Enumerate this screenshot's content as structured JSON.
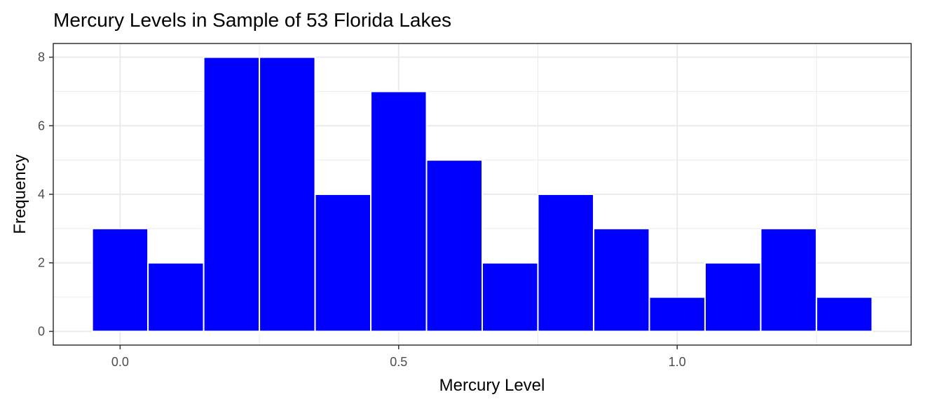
{
  "chart_data": {
    "type": "bar",
    "title": "Mercury Levels in Sample of 53 Florida Lakes",
    "xlabel": "Mercury Level",
    "ylabel": "Frequency",
    "bin_width": 0.1,
    "bins": [
      {
        "x_start": -0.05,
        "x_end": 0.05,
        "count": 3
      },
      {
        "x_start": 0.05,
        "x_end": 0.15,
        "count": 2
      },
      {
        "x_start": 0.15,
        "x_end": 0.25,
        "count": 8
      },
      {
        "x_start": 0.25,
        "x_end": 0.35,
        "count": 8
      },
      {
        "x_start": 0.35,
        "x_end": 0.45,
        "count": 4
      },
      {
        "x_start": 0.45,
        "x_end": 0.55,
        "count": 7
      },
      {
        "x_start": 0.55,
        "x_end": 0.65,
        "count": 5
      },
      {
        "x_start": 0.65,
        "x_end": 0.75,
        "count": 2
      },
      {
        "x_start": 0.75,
        "x_end": 0.85,
        "count": 4
      },
      {
        "x_start": 0.85,
        "x_end": 0.95,
        "count": 3
      },
      {
        "x_start": 0.95,
        "x_end": 1.05,
        "count": 1
      },
      {
        "x_start": 1.05,
        "x_end": 1.15,
        "count": 2
      },
      {
        "x_start": 1.15,
        "x_end": 1.25,
        "count": 3
      },
      {
        "x_start": 1.25,
        "x_end": 1.35,
        "count": 1
      }
    ],
    "xlim": [
      -0.12,
      1.42
    ],
    "ylim": [
      -0.4,
      8.4
    ],
    "x_ticks": [
      {
        "value": 0.0,
        "label": "0.0"
      },
      {
        "value": 0.5,
        "label": "0.5"
      },
      {
        "value": 1.0,
        "label": "1.0"
      }
    ],
    "x_minor_ticks": [
      0.25,
      0.75,
      1.25
    ],
    "y_ticks": [
      {
        "value": 0,
        "label": "0"
      },
      {
        "value": 2,
        "label": "2"
      },
      {
        "value": 4,
        "label": "4"
      },
      {
        "value": 6,
        "label": "6"
      },
      {
        "value": 8,
        "label": "8"
      }
    ],
    "y_minor_ticks": [
      1,
      3,
      5,
      7
    ],
    "grid": true,
    "bar_fill": "#0000ff",
    "bar_outline": "#ffffff"
  }
}
